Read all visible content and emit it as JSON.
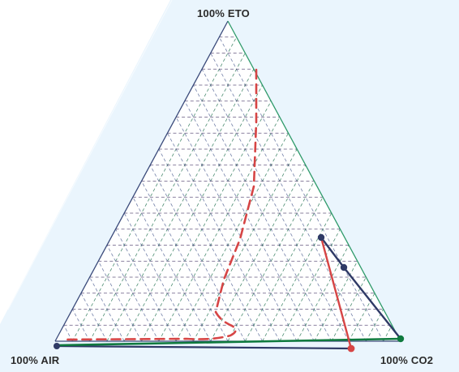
{
  "labels": {
    "top": "100% ETO",
    "left": "100% AIR",
    "right": "100% CO2"
  },
  "colors": {
    "background_light": "#eaf5fd",
    "triangle_fill": "#ffffff",
    "edge_left_right": "#3a4a7a",
    "edge_top_right": "#2e9a6a",
    "grid_horizontal": "#4a3a6a",
    "grid_left_diagonal": "#2e7a5a",
    "grid_right_diagonal": "#5a6a9a",
    "dashed_curve": "#d64545",
    "red_line": "#d64545",
    "navy_line": "#2f3a66",
    "green_line": "#0f7a3e"
  },
  "icons": {
    "vertex_marker": "filled-circle"
  }
}
